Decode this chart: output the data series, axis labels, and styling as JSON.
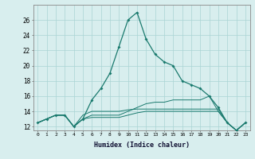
{
  "title": "",
  "xlabel": "Humidex (Indice chaleur)",
  "x": [
    0,
    1,
    2,
    3,
    4,
    5,
    6,
    7,
    8,
    9,
    10,
    11,
    12,
    13,
    14,
    15,
    16,
    17,
    18,
    19,
    20,
    21,
    22,
    23
  ],
  "line1": [
    12.5,
    13.0,
    13.5,
    13.5,
    12.0,
    13.0,
    15.5,
    17.0,
    19.0,
    22.5,
    26.0,
    27.0,
    23.5,
    21.5,
    20.5,
    20.0,
    18.0,
    17.5,
    17.0,
    16.0,
    14.5,
    12.5,
    11.5,
    12.5
  ],
  "line2": [
    12.5,
    13.0,
    13.5,
    13.5,
    12.0,
    13.0,
    13.2,
    13.2,
    13.2,
    13.2,
    13.5,
    13.8,
    14.0,
    14.0,
    14.0,
    14.0,
    14.0,
    14.0,
    14.0,
    14.0,
    14.0,
    12.5,
    11.5,
    12.5
  ],
  "line3": [
    12.5,
    13.0,
    13.5,
    13.5,
    12.0,
    13.0,
    13.5,
    13.5,
    13.5,
    13.5,
    14.0,
    14.5,
    15.0,
    15.2,
    15.2,
    15.5,
    15.5,
    15.5,
    15.5,
    16.0,
    14.0,
    12.5,
    11.5,
    12.5
  ],
  "line4": [
    12.5,
    13.0,
    13.5,
    13.5,
    12.0,
    13.5,
    14.0,
    14.0,
    14.0,
    14.0,
    14.2,
    14.3,
    14.3,
    14.3,
    14.3,
    14.3,
    14.3,
    14.3,
    14.3,
    14.3,
    14.3,
    12.5,
    11.5,
    12.5
  ],
  "line_color": "#1a7a6e",
  "bg_color": "#d8eeee",
  "grid_color": "#aad4d4",
  "ylim": [
    11.5,
    28
  ],
  "yticks": [
    12,
    14,
    16,
    18,
    20,
    22,
    24,
    26
  ],
  "xlim": [
    -0.5,
    23.5
  ],
  "xtick_labels": [
    "0",
    "1",
    "2",
    "3",
    "4",
    "5",
    "6",
    "7",
    "8",
    "9",
    "10",
    "11",
    "12",
    "13",
    "14",
    "15",
    "16",
    "17",
    "18",
    "19",
    "20",
    "21",
    "22",
    "23"
  ]
}
